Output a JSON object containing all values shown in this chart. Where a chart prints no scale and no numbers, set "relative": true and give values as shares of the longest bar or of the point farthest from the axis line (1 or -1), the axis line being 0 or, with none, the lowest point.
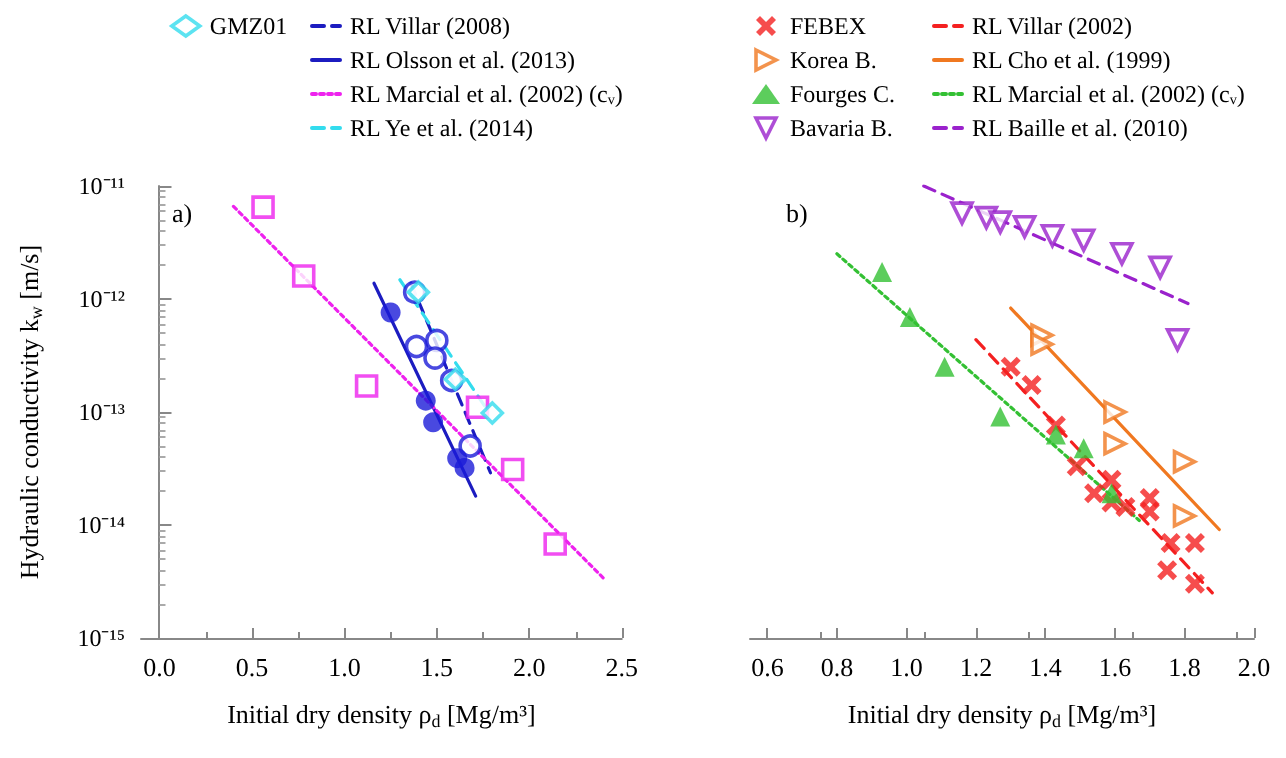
{
  "chart_data": [
    {
      "type": "scatter",
      "ylabel": "Hydraulic conductivity k$_{w}$ [m/s]",
      "xlabel": "Initial dry density ρ$_{d}$ [Mg/m³]",
      "annotations": [
        "a)"
      ],
      "legend": "top",
      "log": "y",
      "xlim": [
        -0.1,
        2.5
      ],
      "xticks": [
        {
          "value": 0,
          "label": "0.0"
        },
        {
          "value": 0.5,
          "label": "0.5"
        },
        {
          "value": 1,
          "label": "1.0"
        },
        {
          "value": 1.5,
          "label": "1.5"
        },
        {
          "value": 2,
          "label": "2.0"
        },
        {
          "value": 2.5,
          "label": "2.5"
        }
      ],
      "ylim": [
        1e-15,
        1e-11
      ],
      "yticks": [
        {
          "value": 1e-15,
          "label": "10⁻¹⁵"
        },
        {
          "value": 1e-14,
          "label": "10⁻¹⁴"
        },
        {
          "value": 1e-13,
          "label": "10⁻¹³"
        },
        {
          "value": 1e-12,
          "label": "10⁻¹²"
        },
        {
          "value": 1e-11,
          "label": "10⁻¹¹"
        }
      ],
      "series": [
        {
          "type": "scatter",
          "color": "#1c1cd8",
          "marker": "circle-open",
          "x": [
            1.38,
            1.39,
            1.5,
            1.49,
            1.58,
            1.68
          ],
          "values": [
            1.15e-12,
            3.8e-13,
            4.3e-13,
            3e-13,
            1.9e-13,
            5e-14
          ]
        },
        {
          "type": "scatter",
          "color": "#1c1cd8",
          "marker": "circle",
          "x": [
            1.25,
            1.44,
            1.48,
            1.61,
            1.65
          ],
          "values": [
            7.6e-13,
            1.26e-13,
            8.1e-14,
            3.9e-14,
            3.2e-14
          ]
        },
        {
          "type": "scatter",
          "color": "#ee22ee",
          "marker": "square-open",
          "x": [
            0.56,
            0.78,
            1.12,
            1.72,
            1.91,
            2.14
          ],
          "values": [
            6.5e-12,
            1.6e-12,
            1.7e-13,
            1.1e-13,
            3.1e-14,
            6.8e-15
          ]
        },
        {
          "type": "scatter",
          "name": "GMZ01",
          "color": "#33dcee",
          "marker": "diamond-open",
          "x": [
            1.4,
            1.6,
            1.8
          ],
          "values": [
            1.15e-12,
            1.95e-13,
            9.8e-14
          ]
        },
        {
          "type": "line",
          "name": "RL Villar (2008)",
          "color": "#1c1cc0",
          "line_style": "dashed",
          "x": [
            1.36,
            1.79
          ],
          "values": [
            1.38e-12,
            2.9e-14
          ]
        },
        {
          "type": "line",
          "name": "RL Olsson et al. (2013)",
          "color": "#1c1cc0",
          "line_style": "solid",
          "x": [
            1.16,
            1.71
          ],
          "values": [
            1.38e-12,
            1.8e-14
          ]
        },
        {
          "type": "line",
          "name": "RL Marcial et al. (2002) (cᵥ)",
          "color": "#ee22ee",
          "line_style": "dotted",
          "x": [
            0.4,
            2.4
          ],
          "values": [
            6.6e-12,
            3.4e-15
          ]
        },
        {
          "type": "line",
          "name": "RL Ye et al. (2014)",
          "color": "#33dcee",
          "line_style": "dashed",
          "x": [
            1.3,
            1.78
          ],
          "values": [
            1.48e-12,
            1e-13
          ]
        }
      ]
    },
    {
      "type": "scatter",
      "xlabel": "Initial dry density ρ$_{d}$ [Mg/m³]",
      "annotations": [
        "b)"
      ],
      "legend": "top",
      "relative": true,
      "tick_labels": "x",
      "xlim": [
        0.55,
        2.0
      ],
      "xticks": [
        {
          "value": 0.6,
          "label": "0.6"
        },
        {
          "value": 0.8,
          "label": "0.8"
        },
        {
          "value": 1,
          "label": "1.0"
        },
        {
          "value": 1.2,
          "label": "1.2"
        },
        {
          "value": 1.4,
          "label": "1.4"
        },
        {
          "value": 1.6,
          "label": "1.6"
        },
        {
          "value": 1.8,
          "label": "1.8"
        },
        {
          "value": 2,
          "label": "2.0"
        }
      ],
      "series": [
        {
          "type": "scatter",
          "name": "FEBEX",
          "color": "#f42020",
          "marker": "cross",
          "x": [
            1.3,
            1.36,
            1.43,
            1.49,
            1.54,
            1.59,
            1.59,
            1.63,
            1.7,
            1.7,
            1.76,
            1.83,
            1.75,
            1.83
          ],
          "values": [
            0.6,
            0.56,
            0.47,
            0.38,
            0.32,
            0.35,
            0.3,
            0.29,
            0.31,
            0.28,
            0.21,
            0.21,
            0.15,
            0.12
          ]
        },
        {
          "type": "scatter",
          "name": "Korea B.",
          "color": "#f07820",
          "marker": "triangle-right-open",
          "x": [
            1.39,
            1.39,
            1.6,
            1.6,
            1.8,
            1.8
          ],
          "values": [
            0.67,
            0.65,
            0.5,
            0.43,
            0.39,
            0.27
          ]
        },
        {
          "type": "scatter",
          "name": "Fourges C.",
          "color": "#33c033",
          "marker": "triangle",
          "x": [
            0.93,
            1.01,
            1.11,
            1.27,
            1.43,
            1.51,
            1.59
          ],
          "values": [
            0.81,
            0.71,
            0.6,
            0.49,
            0.45,
            0.42,
            0.32
          ]
        },
        {
          "type": "scatter",
          "name": "Bavaria B.",
          "color": "#9a22cc",
          "marker": "triangle-down-open",
          "x": [
            1.16,
            1.23,
            1.27,
            1.34,
            1.42,
            1.51,
            1.62,
            1.73,
            1.78
          ],
          "values": [
            0.94,
            0.93,
            0.92,
            0.91,
            0.89,
            0.88,
            0.85,
            0.82,
            0.66
          ]
        },
        {
          "type": "line",
          "name": "RL Villar (2002)",
          "color": "#f42020",
          "line_style": "dashed",
          "x": [
            1.2,
            1.88
          ],
          "values": [
            0.66,
            0.1
          ]
        },
        {
          "type": "line",
          "name": "RL Cho et al. (1999)",
          "color": "#f07820",
          "line_style": "solid",
          "x": [
            1.3,
            1.9
          ],
          "values": [
            0.73,
            0.24
          ]
        },
        {
          "type": "line",
          "name": "RL Marcial et al. (2002) (cᵥ)",
          "color": "#33c033",
          "line_style": "dotted",
          "x": [
            0.8,
            1.67
          ],
          "values": [
            0.85,
            0.26
          ]
        },
        {
          "type": "line",
          "name": "RL Baille et al. (2010)",
          "color": "#9a22cc",
          "line_style": "dashed",
          "x": [
            1.05,
            1.81
          ],
          "values": [
            1.0,
            0.74
          ]
        }
      ]
    }
  ]
}
